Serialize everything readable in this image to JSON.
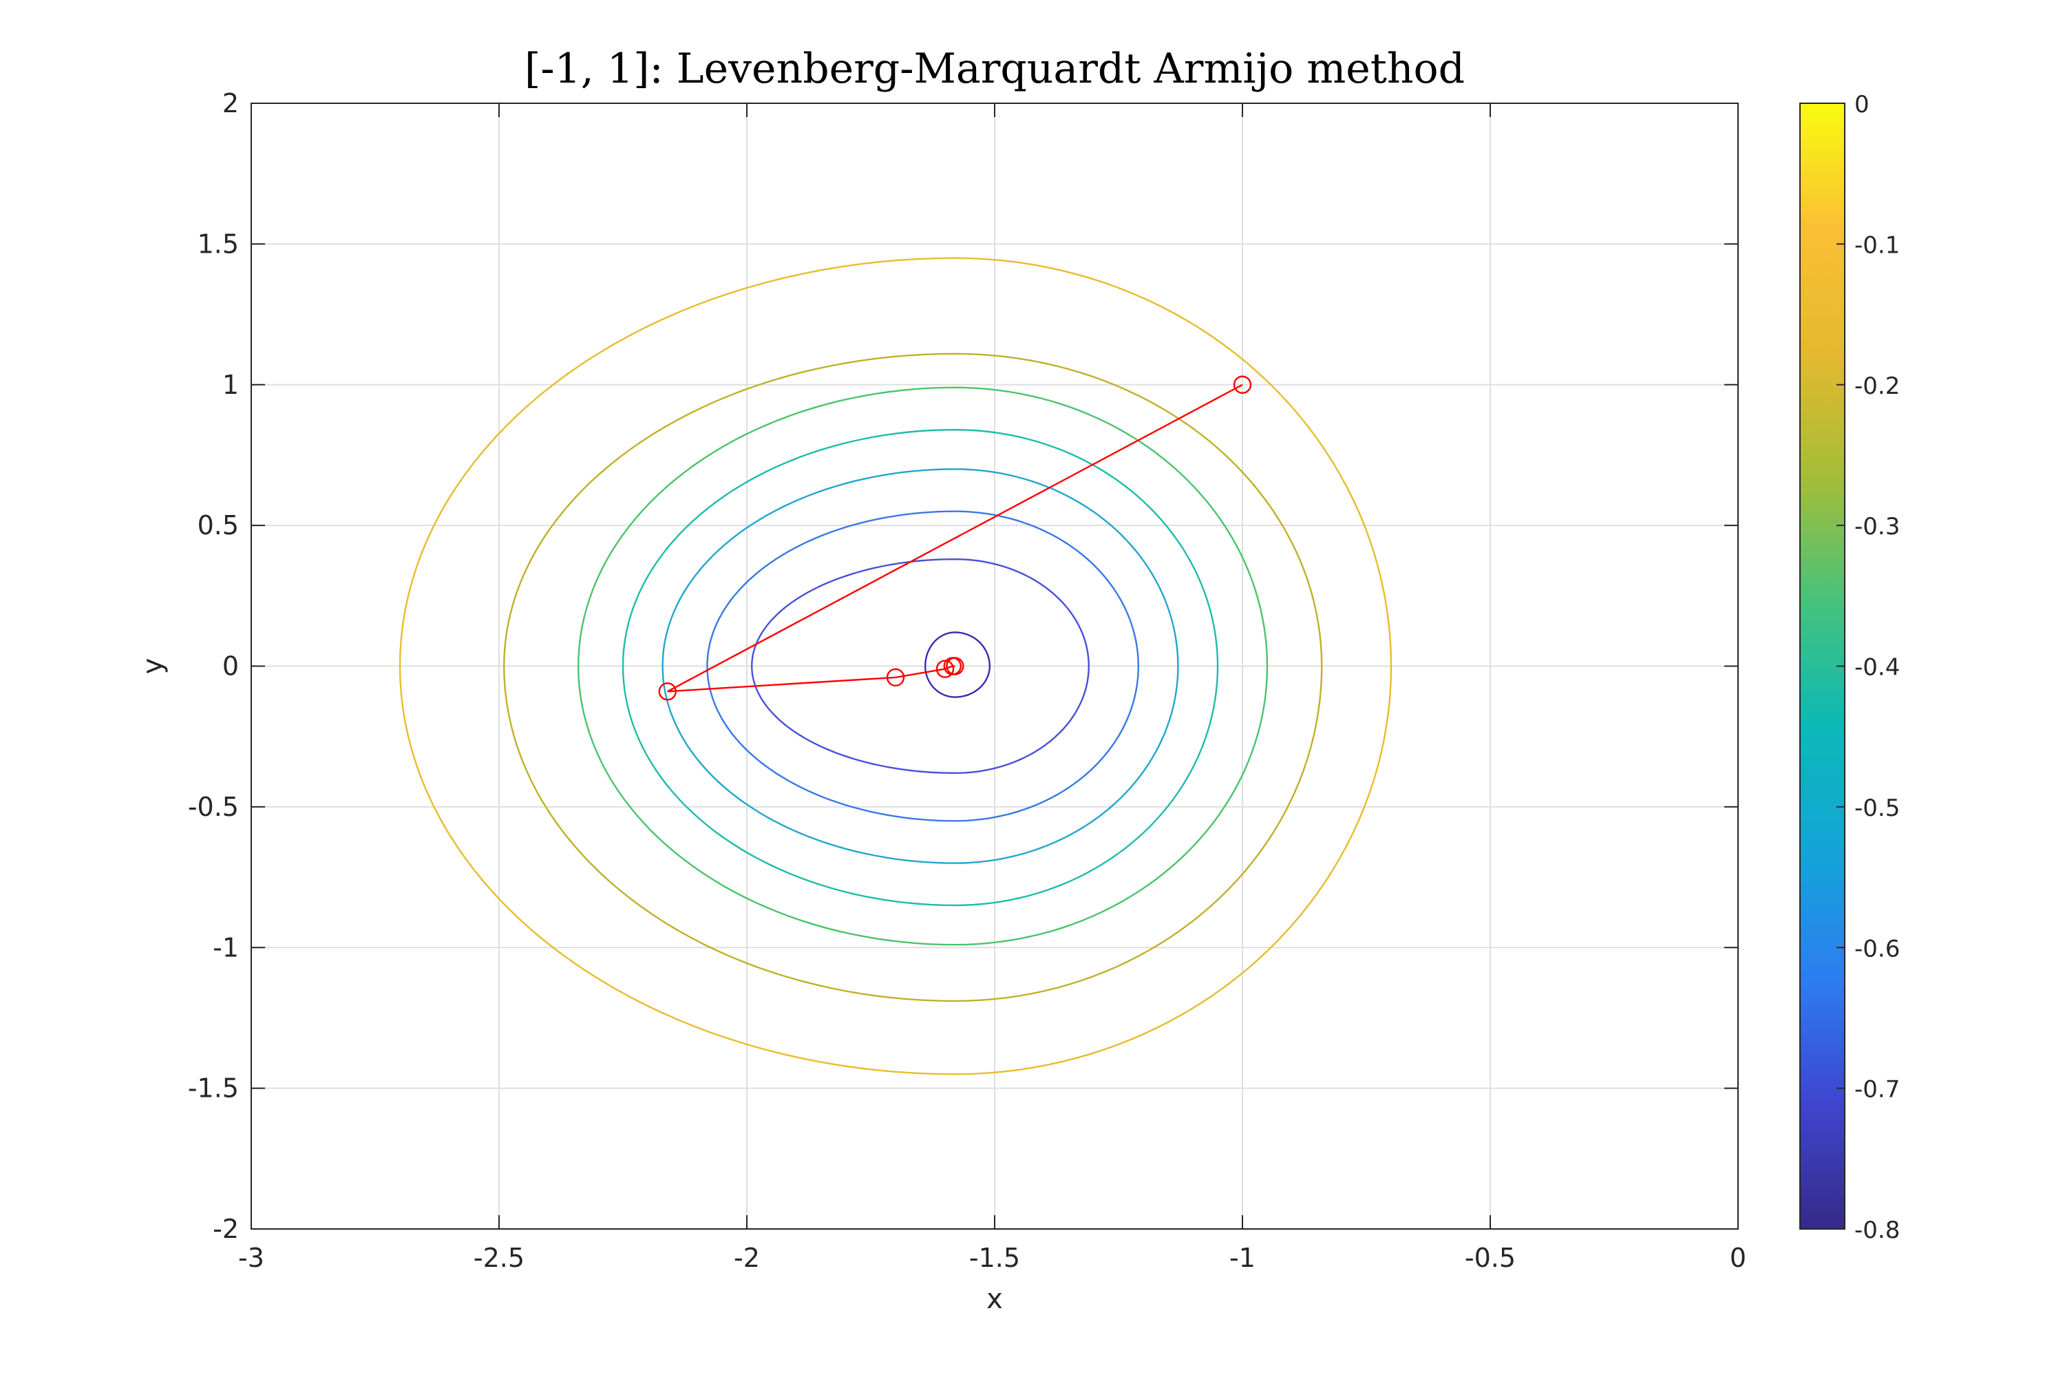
{
  "chart_data": {
    "type": "contour",
    "title": "[-1, 1]: Levenberg-Marquardt Armijo method",
    "xlabel": "x",
    "ylabel": "y",
    "xlim": [
      -3,
      0
    ],
    "ylim": [
      -2,
      2
    ],
    "x_ticks": [
      "-3",
      "-2.5",
      "-2",
      "-1.5",
      "-1",
      "-0.5",
      "0"
    ],
    "y_ticks": [
      "2",
      "1.5",
      "1",
      "0.5",
      "0",
      "-0.5",
      "-1",
      "-1.5",
      "-2"
    ],
    "grid": true,
    "contour_center": [
      -1.58,
      0
    ],
    "contours": [
      {
        "level": -0.1,
        "x_min": -2.7,
        "x_max": -0.7,
        "y_min": -1.45,
        "y_max": 1.45,
        "color": "#e8bc2c"
      },
      {
        "level": -0.2,
        "x_min": -2.49,
        "x_max": -0.84,
        "y_min": -1.19,
        "y_max": 1.11,
        "color": "#c0b02a"
      },
      {
        "level": -0.3,
        "x_min": -2.34,
        "x_max": -0.95,
        "y_min": -0.99,
        "y_max": 0.99,
        "color": "#4ac46c"
      },
      {
        "level": -0.4,
        "x_min": -2.25,
        "x_max": -1.05,
        "y_min": -0.85,
        "y_max": 0.84,
        "color": "#1ebcaa"
      },
      {
        "level": -0.45,
        "x_min": -2.17,
        "x_max": -1.13,
        "y_min": -0.7,
        "y_max": 0.7,
        "color": "#22a6cc"
      },
      {
        "level": -0.55,
        "x_min": -2.08,
        "x_max": -1.21,
        "y_min": -0.55,
        "y_max": 0.55,
        "color": "#3a78e4"
      },
      {
        "level": -0.65,
        "x_min": -1.99,
        "x_max": -1.31,
        "y_min": -0.38,
        "y_max": 0.38,
        "color": "#4850d8"
      },
      {
        "level": -0.75,
        "x_min": -1.64,
        "x_max": -1.51,
        "y_min": -0.11,
        "y_max": 0.12,
        "color": "#3a2cb0"
      }
    ],
    "path": {
      "color": "#ff0000",
      "x": [
        -1.0,
        -2.16,
        -1.7,
        -1.6,
        -1.585,
        -1.58
      ],
      "y": [
        1.0,
        -0.09,
        -0.04,
        -0.01,
        0.0,
        0.0
      ]
    },
    "colorbar": {
      "range": [
        -0.8,
        0
      ],
      "ticks": [
        "0",
        "-0.1",
        "-0.2",
        "-0.3",
        "-0.4",
        "-0.5",
        "-0.6",
        "-0.7",
        "-0.8"
      ],
      "colors": [
        "#352a87",
        "#3e45cf",
        "#2d7df0",
        "#14a4d8",
        "#0cb8b8",
        "#45c27c",
        "#a4bd38",
        "#e4b92f",
        "#fbbf35",
        "#f9fb0e"
      ]
    }
  }
}
